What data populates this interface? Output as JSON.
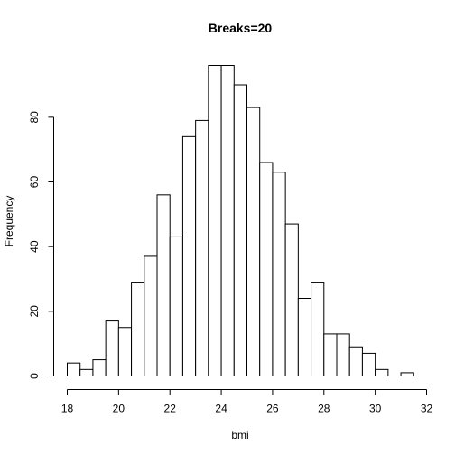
{
  "chart_data": {
    "type": "bar",
    "title": "Breaks=20",
    "xlabel": "bmi",
    "ylabel": "Frequency",
    "bin_width": 0.5,
    "bins": [
      {
        "start": 18.0,
        "end": 18.5,
        "value": 4
      },
      {
        "start": 18.5,
        "end": 19.0,
        "value": 2
      },
      {
        "start": 19.0,
        "end": 19.5,
        "value": 5
      },
      {
        "start": 19.5,
        "end": 20.0,
        "value": 17
      },
      {
        "start": 20.0,
        "end": 20.5,
        "value": 15
      },
      {
        "start": 20.5,
        "end": 21.0,
        "value": 29
      },
      {
        "start": 21.0,
        "end": 21.5,
        "value": 37
      },
      {
        "start": 21.5,
        "end": 22.0,
        "value": 56
      },
      {
        "start": 22.0,
        "end": 22.5,
        "value": 43
      },
      {
        "start": 22.5,
        "end": 23.0,
        "value": 74
      },
      {
        "start": 23.0,
        "end": 23.5,
        "value": 79
      },
      {
        "start": 23.5,
        "end": 24.0,
        "value": 96
      },
      {
        "start": 24.0,
        "end": 24.5,
        "value": 96
      },
      {
        "start": 24.5,
        "end": 25.0,
        "value": 90
      },
      {
        "start": 25.0,
        "end": 25.5,
        "value": 83
      },
      {
        "start": 25.5,
        "end": 26.0,
        "value": 66
      },
      {
        "start": 26.0,
        "end": 26.5,
        "value": 63
      },
      {
        "start": 26.5,
        "end": 27.0,
        "value": 47
      },
      {
        "start": 27.0,
        "end": 27.5,
        "value": 24
      },
      {
        "start": 27.5,
        "end": 28.0,
        "value": 29
      },
      {
        "start": 28.0,
        "end": 28.5,
        "value": 13
      },
      {
        "start": 28.5,
        "end": 29.0,
        "value": 13
      },
      {
        "start": 29.0,
        "end": 29.5,
        "value": 9
      },
      {
        "start": 29.5,
        "end": 30.0,
        "value": 7
      },
      {
        "start": 30.0,
        "end": 30.5,
        "value": 2
      },
      {
        "start": 30.5,
        "end": 31.0,
        "value": 0
      },
      {
        "start": 31.0,
        "end": 31.5,
        "value": 1
      }
    ],
    "xlim": [
      18,
      32
    ],
    "ylim": [
      0,
      96
    ],
    "x_ticks": [
      18,
      20,
      22,
      24,
      26,
      28,
      30,
      32
    ],
    "y_ticks": [
      0,
      20,
      40,
      60,
      80
    ],
    "grid": false,
    "colors": {
      "bar_fill": "#ffffff",
      "bar_stroke": "#000000"
    }
  }
}
